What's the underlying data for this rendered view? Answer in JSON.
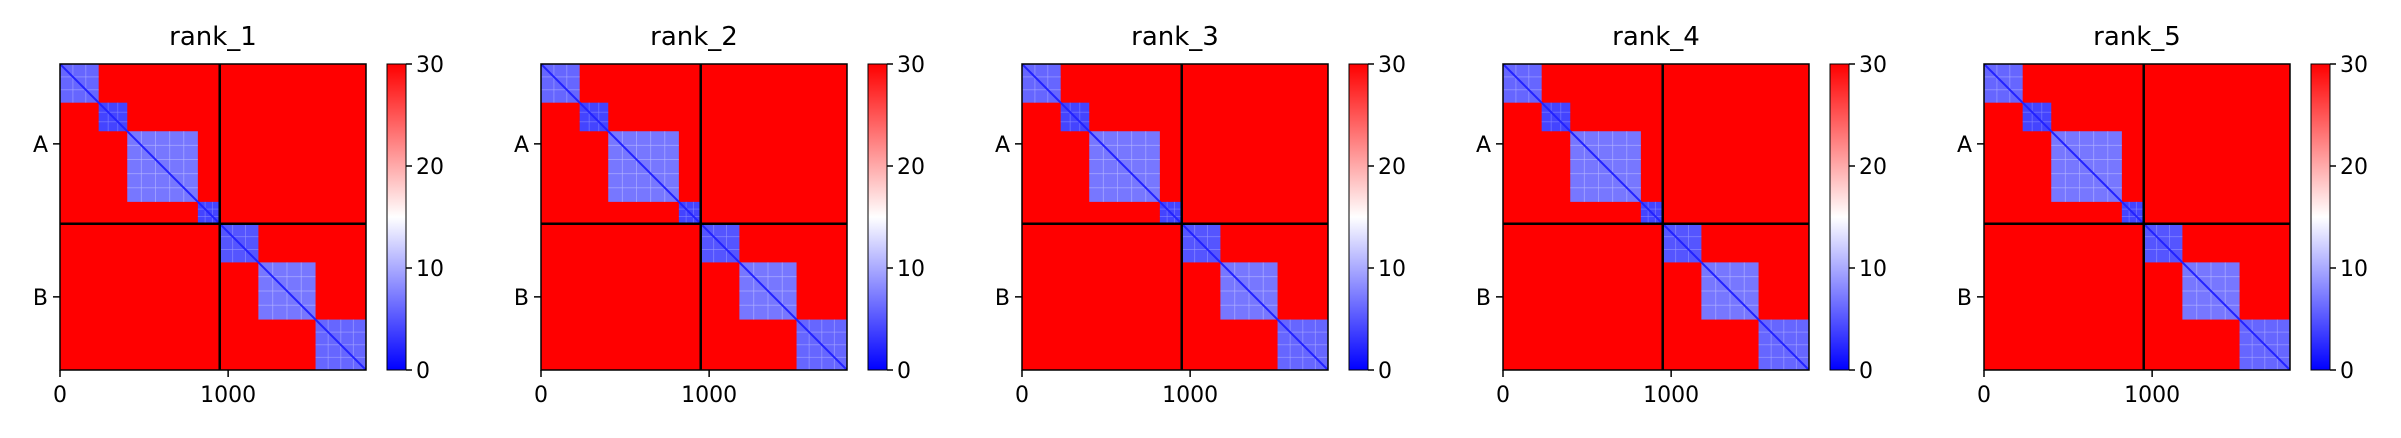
{
  "chart_data": {
    "type": "heatmap",
    "colormap": {
      "name": "bwr",
      "low": "#0000ff",
      "mid": "#ffffff",
      "high": "#ff0000"
    },
    "colorbar": {
      "vmin": 0,
      "vmax": 30,
      "ticks": [
        "0",
        "10",
        "20",
        "30"
      ]
    },
    "x_ticks": [
      {
        "value": 0,
        "label": "0"
      },
      {
        "value": 1000,
        "label": "1000"
      }
    ],
    "x_range": [
      0,
      1820
    ],
    "chain_boundary": 950,
    "chains": [
      {
        "label": "A",
        "start": 0,
        "end": 950
      },
      {
        "label": "B",
        "start": 950,
        "end": 1820
      }
    ],
    "blocks": [
      {
        "start": 0,
        "end": 230,
        "intra": 6
      },
      {
        "start": 230,
        "end": 400,
        "intra": 4
      },
      {
        "start": 400,
        "end": 820,
        "intra": 7
      },
      {
        "start": 820,
        "end": 950,
        "intra": 4
      },
      {
        "start": 950,
        "end": 1180,
        "intra": 5
      },
      {
        "start": 1180,
        "end": 1520,
        "intra": 7
      },
      {
        "start": 1520,
        "end": 1820,
        "intra": 6
      }
    ],
    "background": 30,
    "panels": [
      {
        "title": "rank_1"
      },
      {
        "title": "rank_2"
      },
      {
        "title": "rank_3"
      },
      {
        "title": "rank_4"
      },
      {
        "title": "rank_5"
      }
    ]
  }
}
